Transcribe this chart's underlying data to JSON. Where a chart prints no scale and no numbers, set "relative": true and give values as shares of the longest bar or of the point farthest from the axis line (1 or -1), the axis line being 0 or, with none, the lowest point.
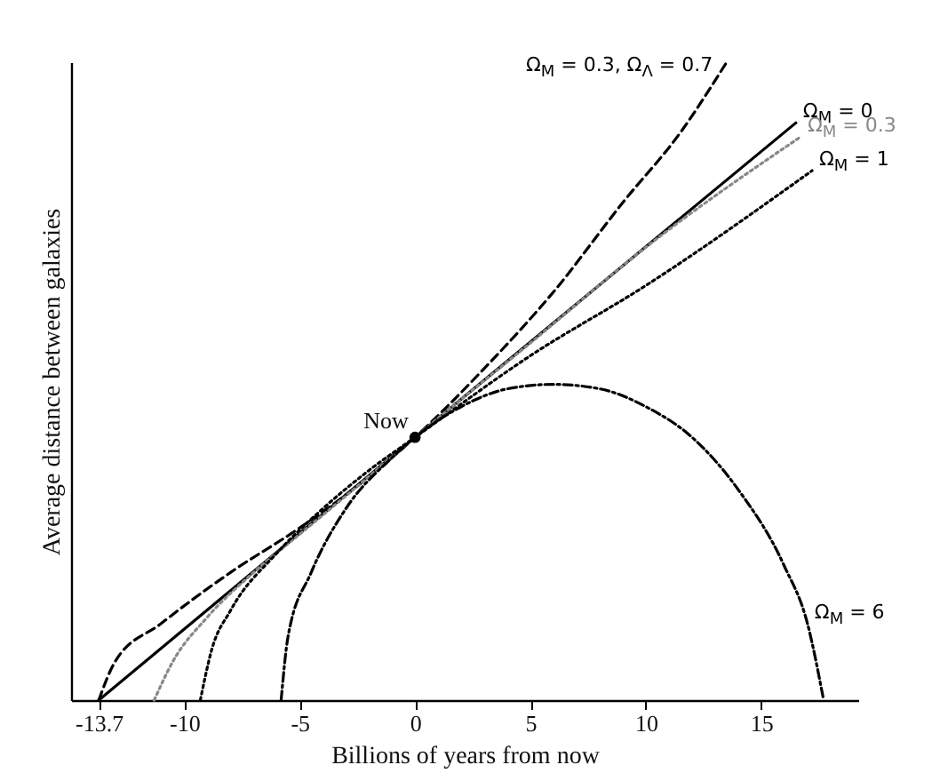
{
  "chart_data": {
    "type": "line",
    "relative": true,
    "xlabel": "Billions of years from now",
    "ylabel": "Average distance between galaxies",
    "xlim": [
      -14.9,
      19.2
    ],
    "xticks": [
      -13.7,
      -10,
      -5,
      0,
      5,
      10,
      15
    ],
    "grid": false,
    "annotations": [
      {
        "text": "Now",
        "x": 0,
        "y": 0.412
      }
    ],
    "series": [
      {
        "name": "Ω$_{M}$ = 0.3, Ω$_{Λ}$ = 0.7",
        "color": "#000000",
        "line_style": "dashed",
        "x": [
          -13.7,
          -13,
          -11,
          -8,
          -5,
          -2,
          0,
          3,
          6,
          9,
          11.5,
          13.5
        ],
        "values": [
          0,
          0.06,
          0.12,
          0.2,
          0.27,
          0.35,
          0.412,
          0.52,
          0.64,
          0.78,
          0.89,
          1
        ]
      },
      {
        "name": "Ω$_{M}$ = 0",
        "color": "#000000",
        "line_style": "solid",
        "x": [
          -13.7,
          0,
          16.5
        ],
        "values": [
          0,
          0.412,
          0.905
        ]
      },
      {
        "name": "Ω$_{M}$ = 0.3",
        "color": "#888888",
        "line_style": "dotted",
        "x": [
          -11.3,
          -10.5,
          -9,
          -7,
          -5,
          -3,
          0,
          5,
          10,
          16.7
        ],
        "values": [
          0,
          0.06,
          0.13,
          0.2,
          0.26,
          0.32,
          0.412,
          0.56,
          0.71,
          0.883
        ]
      },
      {
        "name": "Ω$_{M}$ = 1",
        "color": "#000000",
        "line_style": "dotted",
        "x": [
          -9.3,
          -8.8,
          -8,
          -6,
          -4,
          -2,
          0,
          5,
          10,
          17.2
        ],
        "values": [
          0,
          0.08,
          0.14,
          0.23,
          0.3,
          0.36,
          0.412,
          0.54,
          0.65,
          0.83
        ]
      },
      {
        "name": "Ω$_{M}$ = 6",
        "color": "#000000",
        "line_style": "dashdot",
        "x": [
          -5.8,
          -5.5,
          -4.5,
          -3,
          -1,
          0,
          2,
          4,
          6,
          8,
          10,
          12,
          14,
          16,
          17,
          17.7
        ],
        "values": [
          0,
          0.1,
          0.2,
          0.3,
          0.38,
          0.412,
          0.46,
          0.488,
          0.495,
          0.488,
          0.46,
          0.412,
          0.33,
          0.21,
          0.12,
          0
        ]
      },
      {
        "type": "scatter",
        "color": "#000000",
        "marker": "circle",
        "x": [
          0
        ],
        "values": [
          0.412
        ]
      }
    ]
  }
}
